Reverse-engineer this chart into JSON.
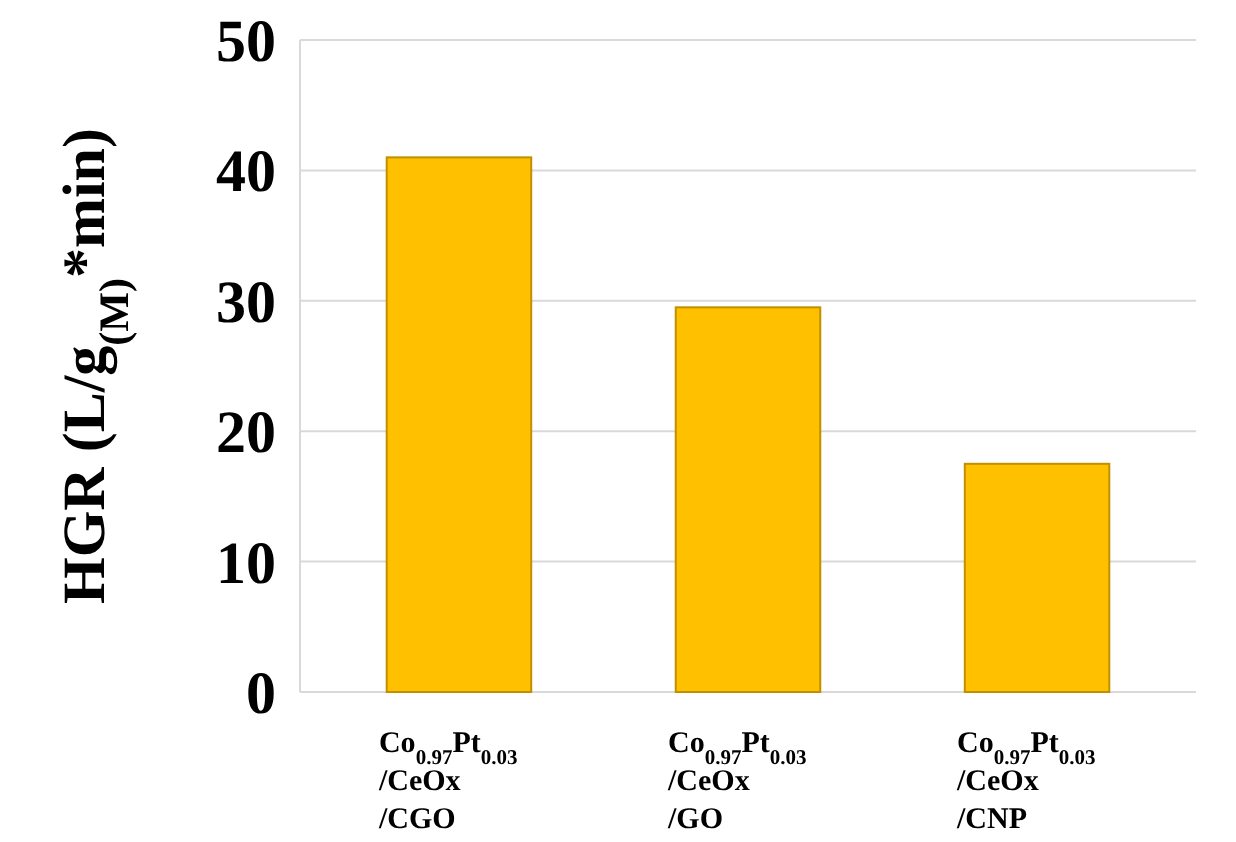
{
  "chart_data": {
    "type": "bar",
    "ylabel": "HGR  (L/g$_{(M)}$*min)",
    "categories": [
      "Co$_{0.97}$Pt$_{0.03}$\n/CeOx\n/CGO",
      "Co$_{0.97}$Pt$_{0.03}$\n/CeOx\n/GO",
      "Co$_{0.97}$Pt$_{0.03}$\n/CeOx\n/CNP"
    ],
    "values": [
      41,
      29.5,
      17.5
    ],
    "color": "#ffc000",
    "ylim": [
      0,
      50
    ],
    "yticks": [
      0,
      10,
      20,
      30,
      40,
      50
    ],
    "grid": "y"
  }
}
